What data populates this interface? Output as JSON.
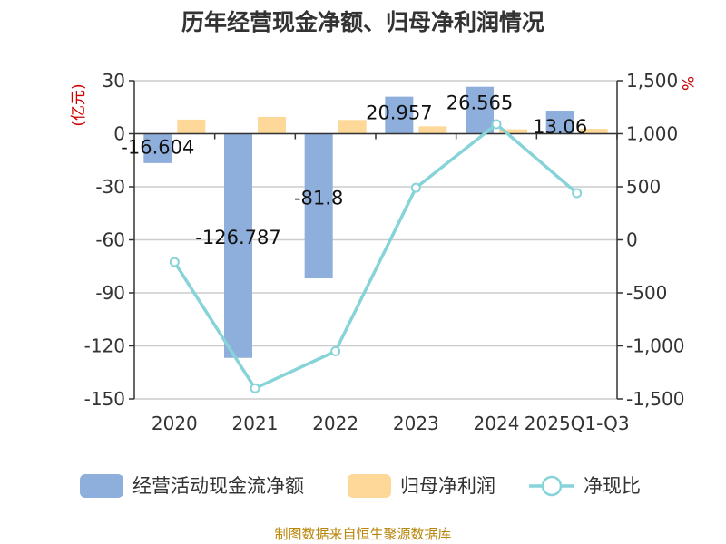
{
  "chart_data": {
    "type": "bar+line",
    "title": "历年经营现金净额、归母净利润情况",
    "categories": [
      "2020",
      "2021",
      "2022",
      "2023",
      "2024",
      "2025Q1-Q3"
    ],
    "series": [
      {
        "name": "经营活动现金流净额",
        "type": "bar",
        "axis": "left",
        "color": "#8eaedb",
        "values": [
          -16.604,
          -126.787,
          -81.8,
          20.957,
          26.565,
          13.06
        ],
        "labels": [
          "-16.604",
          "-126.787",
          "-81.8",
          "20.957",
          "26.565",
          "13.06"
        ]
      },
      {
        "name": "归母净利润",
        "type": "bar",
        "axis": "left",
        "color": "#fdd898",
        "values": [
          8,
          9.5,
          7.8,
          4.2,
          2.5,
          2.8
        ]
      },
      {
        "name": "净现比",
        "type": "line",
        "axis": "right",
        "color": "#86d3d8",
        "values": [
          -210,
          -1400,
          -1050,
          490,
          1090,
          440
        ]
      }
    ],
    "left_axis": {
      "unit": "(亿元)",
      "ylim": [
        -150,
        30
      ],
      "ticks": [
        "30",
        "0",
        "-30",
        "-60",
        "-90",
        "-120",
        "-150"
      ]
    },
    "right_axis": {
      "unit": "%",
      "ylim": [
        -1500,
        1500
      ],
      "ticks": [
        "1,500",
        "1,000",
        "500",
        "0",
        "-500",
        "-1,000",
        "-1,500"
      ]
    },
    "legend_position": "bottom",
    "grid": true
  },
  "source": "制图数据来自恒生聚源数据库"
}
